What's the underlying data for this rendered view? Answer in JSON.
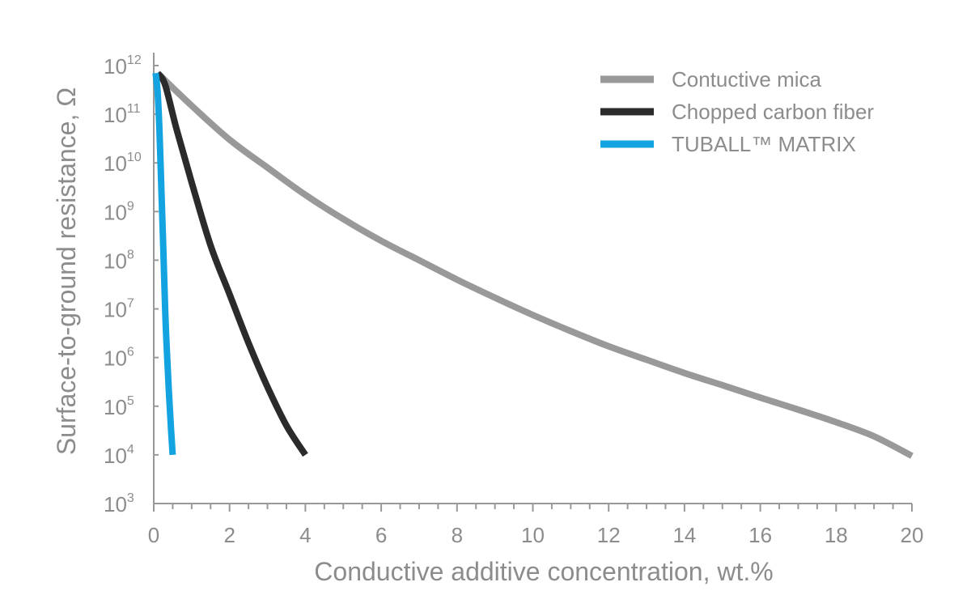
{
  "chart_data": {
    "type": "line",
    "xlabel": "Conductive additive concentration, wt.%",
    "ylabel": "Surface-to-ground resistance, Ω",
    "xlim": [
      0,
      20
    ],
    "ylim": [
      1000,
      1000000000000
    ],
    "y_scale": "log",
    "x_ticks": [
      "0",
      "2",
      "4",
      "6",
      "8",
      "10",
      "12",
      "14",
      "16",
      "18",
      "20"
    ],
    "y_ticks": [
      {
        "base": "10",
        "exp": "12"
      },
      {
        "base": "10",
        "exp": "11"
      },
      {
        "base": "10",
        "exp": "10"
      },
      {
        "base": "10",
        "exp": "9"
      },
      {
        "base": "10",
        "exp": "8"
      },
      {
        "base": "10",
        "exp": "7"
      },
      {
        "base": "10",
        "exp": "6"
      },
      {
        "base": "10",
        "exp": "5"
      },
      {
        "base": "10",
        "exp": "4"
      },
      {
        "base": "10",
        "exp": "3"
      }
    ],
    "grid": false,
    "legend_position": "top-right",
    "series": [
      {
        "name": "Contuctive mica",
        "color": "#999999",
        "x": [
          0.1,
          1,
          2,
          3,
          4,
          5,
          6,
          7,
          8,
          9,
          10,
          11,
          12,
          13,
          14,
          15,
          16,
          17,
          18,
          19,
          20
        ],
        "y": [
          700000000000,
          150000000000,
          30000000000,
          8000000000,
          2200000000,
          700000000,
          250000000,
          100000000,
          40000000,
          17000000,
          7500000,
          3500000,
          1700000,
          900000,
          480000,
          270000,
          150000,
          85000,
          47000,
          24000,
          9500
        ]
      },
      {
        "name": "Chopped carbon fiber",
        "color": "#2b2b2b",
        "x": [
          0.1,
          0.3,
          0.6,
          1.0,
          1.5,
          2.0,
          2.5,
          3.0,
          3.5,
          4.0
        ],
        "y": [
          700000000000,
          400000000000,
          50000000000,
          4000000000,
          200000000,
          20000000,
          2000000,
          250000,
          40000,
          10000
        ]
      },
      {
        "name": "TUBALL™ MATRIX",
        "color": "#12a3e0",
        "x": [
          0.05,
          0.1,
          0.15,
          0.2,
          0.25,
          0.3,
          0.35,
          0.4,
          0.45,
          0.5
        ],
        "y": [
          700000000000,
          300000000000,
          50000000000,
          3000000000,
          200000000,
          10000000,
          1200000,
          200000,
          40000,
          10000
        ]
      }
    ]
  }
}
